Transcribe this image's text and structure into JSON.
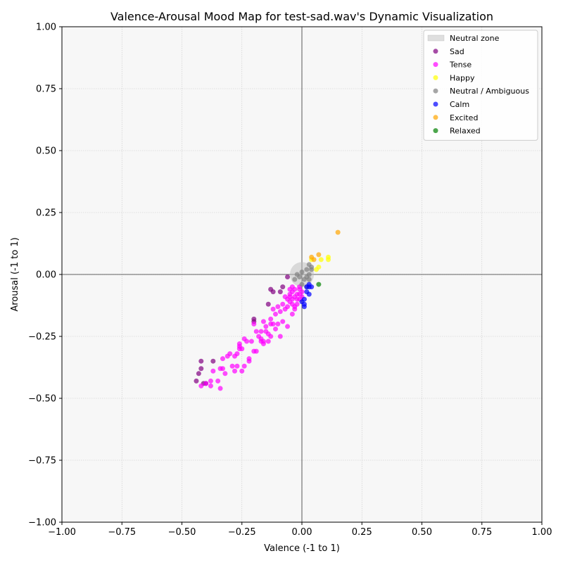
{
  "chart_data": {
    "type": "scatter",
    "title": "Valence-Arousal Mood Map for test-sad.wav's Dynamic Visualization",
    "xlabel": "Valence (-1 to 1)",
    "ylabel": "Arousal (-1 to 1)",
    "xlim": [
      -1,
      1
    ],
    "ylim": [
      -1,
      1
    ],
    "x_ticks": [
      "−1.00",
      "−0.75",
      "−0.50",
      "−0.25",
      "0.00",
      "0.25",
      "0.50",
      "0.75",
      "1.00"
    ],
    "y_ticks": [
      "−1.00",
      "−0.75",
      "−0.50",
      "−0.25",
      "0.00",
      "0.25",
      "0.50",
      "0.75",
      "1.00"
    ],
    "grid": true,
    "legend_position": "top-right",
    "neutral_zone": {
      "label": "Neutral zone",
      "center": [
        0,
        0
      ],
      "radius": 0.05,
      "color": "#bbbbbb"
    },
    "series": [
      {
        "name": "Sad",
        "color": "#800080",
        "points": [
          [
            -0.44,
            -0.43
          ],
          [
            -0.43,
            -0.4
          ],
          [
            -0.42,
            -0.38
          ],
          [
            -0.42,
            -0.35
          ],
          [
            -0.37,
            -0.35
          ],
          [
            -0.2,
            -0.19
          ],
          [
            -0.2,
            -0.18
          ],
          [
            -0.14,
            -0.12
          ],
          [
            -0.13,
            -0.06
          ],
          [
            -0.12,
            -0.07
          ],
          [
            -0.09,
            -0.07
          ],
          [
            -0.08,
            -0.05
          ],
          [
            -0.06,
            -0.01
          ],
          [
            -0.4,
            -0.44
          ],
          [
            -0.41,
            -0.44
          ]
        ]
      },
      {
        "name": "Tense",
        "color": "#ff00ff",
        "points": [
          [
            -0.42,
            -0.45
          ],
          [
            -0.4,
            -0.44
          ],
          [
            -0.38,
            -0.43
          ],
          [
            -0.38,
            -0.45
          ],
          [
            -0.37,
            -0.39
          ],
          [
            -0.35,
            -0.43
          ],
          [
            -0.34,
            -0.46
          ],
          [
            -0.34,
            -0.38
          ],
          [
            -0.33,
            -0.38
          ],
          [
            -0.33,
            -0.34
          ],
          [
            -0.32,
            -0.4
          ],
          [
            -0.31,
            -0.33
          ],
          [
            -0.3,
            -0.32
          ],
          [
            -0.29,
            -0.37
          ],
          [
            -0.28,
            -0.39
          ],
          [
            -0.28,
            -0.33
          ],
          [
            -0.27,
            -0.37
          ],
          [
            -0.27,
            -0.32
          ],
          [
            -0.26,
            -0.3
          ],
          [
            -0.26,
            -0.28
          ],
          [
            -0.25,
            -0.3
          ],
          [
            -0.25,
            -0.39
          ],
          [
            -0.24,
            -0.37
          ],
          [
            -0.24,
            -0.26
          ],
          [
            -0.23,
            -0.27
          ],
          [
            -0.22,
            -0.34
          ],
          [
            -0.22,
            -0.35
          ],
          [
            -0.21,
            -0.27
          ],
          [
            -0.2,
            -0.31
          ],
          [
            -0.19,
            -0.31
          ],
          [
            -0.19,
            -0.23
          ],
          [
            -0.18,
            -0.25
          ],
          [
            -0.17,
            -0.23
          ],
          [
            -0.17,
            -0.26
          ],
          [
            -0.16,
            -0.27
          ],
          [
            -0.16,
            -0.28
          ],
          [
            -0.16,
            -0.19
          ],
          [
            -0.15,
            -0.23
          ],
          [
            -0.15,
            -0.21
          ],
          [
            -0.14,
            -0.27
          ],
          [
            -0.14,
            -0.24
          ],
          [
            -0.13,
            -0.25
          ],
          [
            -0.13,
            -0.18
          ],
          [
            -0.13,
            -0.2
          ],
          [
            -0.12,
            -0.2
          ],
          [
            -0.12,
            -0.14
          ],
          [
            -0.11,
            -0.22
          ],
          [
            -0.11,
            -0.16
          ],
          [
            -0.1,
            -0.2
          ],
          [
            -0.1,
            -0.13
          ],
          [
            -0.09,
            -0.25
          ],
          [
            -0.09,
            -0.15
          ],
          [
            -0.08,
            -0.12
          ],
          [
            -0.08,
            -0.19
          ],
          [
            -0.07,
            -0.14
          ],
          [
            -0.07,
            -0.09
          ],
          [
            -0.06,
            -0.1
          ],
          [
            -0.06,
            -0.21
          ],
          [
            -0.06,
            -0.13
          ],
          [
            -0.05,
            -0.06
          ],
          [
            -0.05,
            -0.08
          ],
          [
            -0.05,
            -0.09
          ],
          [
            -0.05,
            -0.11
          ],
          [
            -0.04,
            -0.05
          ],
          [
            -0.04,
            -0.07
          ],
          [
            -0.04,
            -0.1
          ],
          [
            -0.04,
            -0.12
          ],
          [
            -0.04,
            -0.16
          ],
          [
            -0.03,
            -0.06
          ],
          [
            -0.03,
            -0.09
          ],
          [
            -0.03,
            -0.13
          ],
          [
            -0.02,
            -0.08
          ],
          [
            -0.02,
            -0.1
          ],
          [
            -0.02,
            -0.12
          ],
          [
            -0.01,
            -0.05
          ],
          [
            -0.01,
            -0.06
          ],
          [
            -0.01,
            -0.08
          ],
          [
            -0.01,
            -0.1
          ],
          [
            0.0,
            -0.07
          ],
          [
            0.0,
            -0.09
          ],
          [
            -0.2,
            -0.2
          ],
          [
            -0.17,
            -0.27
          ],
          [
            -0.26,
            -0.29
          ],
          [
            -0.03,
            -0.14
          ]
        ]
      },
      {
        "name": "Happy",
        "color": "#ffff00",
        "points": [
          [
            0.06,
            0.02
          ],
          [
            0.07,
            0.03
          ],
          [
            0.08,
            0.06
          ],
          [
            0.11,
            0.06
          ],
          [
            0.11,
            0.07
          ],
          [
            0.04,
            0.06
          ]
        ]
      },
      {
        "name": "Neutral / Ambiguous",
        "color": "#808080",
        "points": [
          [
            -0.03,
            -0.02
          ],
          [
            -0.02,
            0.0
          ],
          [
            0.0,
            0.01
          ],
          [
            0.0,
            -0.04
          ],
          [
            0.01,
            -0.02
          ],
          [
            0.02,
            0.02
          ],
          [
            0.02,
            -0.01
          ],
          [
            0.03,
            0.04
          ],
          [
            0.03,
            0.0
          ],
          [
            0.03,
            -0.02
          ],
          [
            0.04,
            0.03
          ],
          [
            0.04,
            0.02
          ],
          [
            0.02,
            -0.05
          ],
          [
            -0.01,
            -0.01
          ]
        ]
      },
      {
        "name": "Calm",
        "color": "#0000ff",
        "points": [
          [
            0.01,
            -0.1
          ],
          [
            0.01,
            -0.12
          ],
          [
            0.01,
            -0.13
          ],
          [
            0.02,
            -0.05
          ],
          [
            0.02,
            -0.07
          ],
          [
            0.03,
            -0.05
          ],
          [
            0.03,
            -0.08
          ],
          [
            0.03,
            -0.04
          ],
          [
            0.04,
            -0.05
          ],
          [
            0.0,
            -0.11
          ]
        ]
      },
      {
        "name": "Excited",
        "color": "#ffa500",
        "points": [
          [
            0.04,
            0.07
          ],
          [
            0.05,
            0.06
          ],
          [
            0.07,
            0.08
          ],
          [
            0.15,
            0.17
          ]
        ]
      },
      {
        "name": "Relaxed",
        "color": "#008000",
        "points": [
          [
            0.07,
            -0.04
          ]
        ]
      }
    ]
  }
}
